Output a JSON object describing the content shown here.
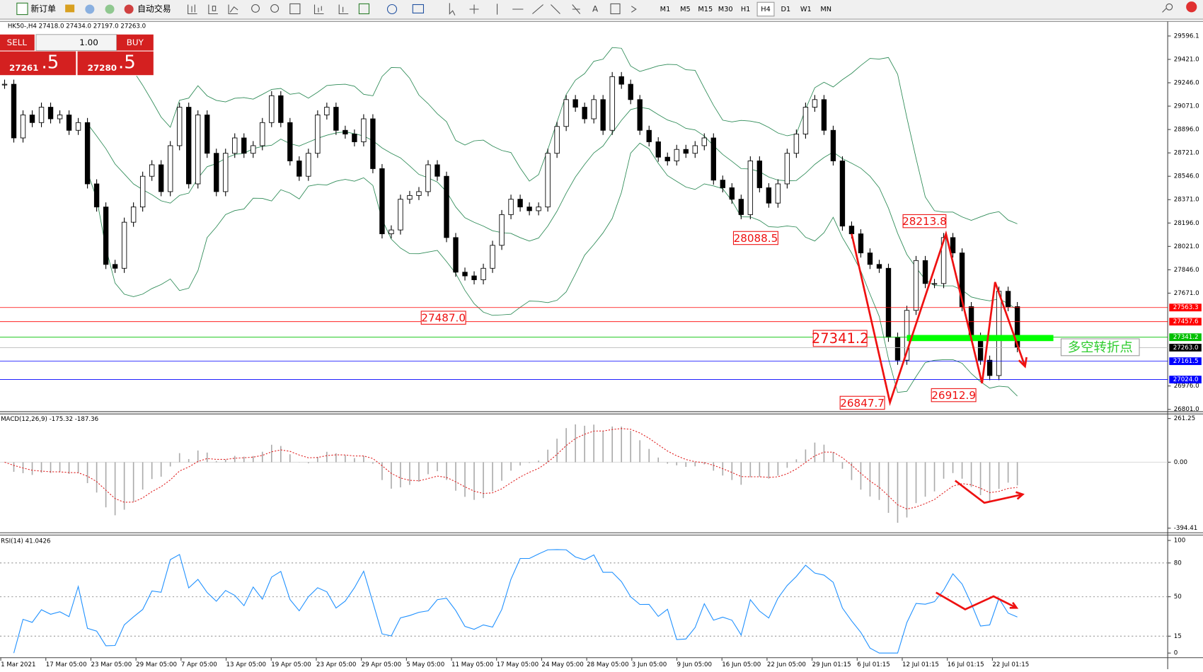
{
  "toolbar": {
    "new_order": "新订单",
    "auto_trade": "自动交易",
    "timeframes": [
      "M1",
      "M5",
      "M15",
      "M30",
      "H1",
      "H4",
      "D1",
      "W1",
      "MN"
    ],
    "active_timeframe": "H4"
  },
  "trade_panel": {
    "sell": "SELL",
    "buy": "BUY",
    "volume": "1.00",
    "sell_main": "27261",
    "sell_big": ".5",
    "buy_main": "27280",
    "buy_big": ".5"
  },
  "chart_data": [
    {
      "type": "candlestick",
      "title": "HK50-,H4 27418.0 27434.0 27197.0 27263.0",
      "closes": [
        29235,
        28833,
        29005,
        28948,
        29063,
        28976,
        29005,
        28890,
        28948,
        28489,
        28316,
        27886,
        27857,
        28202,
        28316,
        28546,
        28632,
        28431,
        28775,
        29063,
        28489,
        29005,
        28718,
        28431,
        28718,
        28833,
        28718,
        28775,
        28948,
        29149,
        28948,
        28661,
        28546,
        28718,
        29005,
        29063,
        28890,
        28862,
        28804,
        28976,
        28603,
        28115,
        28144,
        28374,
        28402,
        28431,
        28632,
        28546,
        28087,
        27828,
        27800,
        27771,
        27857,
        28029,
        28259,
        28374,
        28316,
        28288,
        28316,
        28718,
        28919,
        29120,
        29063,
        28976,
        29120,
        28890,
        29292,
        29235,
        29120,
        28890,
        28804,
        28689,
        28661,
        28747,
        28718,
        28775,
        28833,
        28517,
        28460,
        28374,
        28259,
        28661,
        28460,
        28345,
        28489,
        28718,
        28862,
        29063,
        29120,
        28890,
        28661,
        28173,
        28115,
        27972,
        27886,
        27857,
        27341,
        27169,
        27542,
        27915,
        27743,
        27743,
        28087,
        27972,
        27570,
        27341,
        27169,
        27054,
        27685,
        27570,
        27263
      ],
      "x_labels": [
        "1 Mar 2021",
        "17 Mar 05:00",
        "23 Mar 05:00",
        "29 Mar 05:00",
        "7 Apr 05:00",
        "13 Apr 05:00",
        "19 Apr 05:00",
        "23 Apr 05:00",
        "29 Apr 05:00",
        "5 May 05:00",
        "11 May 05:00",
        "17 May 05:00",
        "24 May 05:00",
        "28 May 05:00",
        "3 Jun 05:00",
        "9 Jun 05:00",
        "16 Jun 05:00",
        "22 Jun 05:00",
        "29 Jun 01:15",
        "6 Jul 01:15",
        "12 Jul 01:15",
        "16 Jul 01:15",
        "22 Jul 01:15"
      ],
      "ylim": [
        26784,
        29705
      ],
      "yticks": [
        29596.1,
        {
          "value": 29421.0,
          "label": "29421.0"
        },
        {
          "value": 29246.0,
          "label": "29246.0"
        },
        {
          "value": 29071.0,
          "label": "29071.0"
        },
        {
          "value": 28896.0,
          "label": "28896.0"
        },
        {
          "value": 28721.0,
          "label": "28721.0"
        },
        {
          "value": 28546.0,
          "label": "28546.0"
        },
        {
          "value": 28371.0,
          "label": "28371.0"
        },
        {
          "value": 28196.0,
          "label": "28196.0"
        },
        {
          "value": 28021.0,
          "label": "28021.0"
        },
        {
          "value": 27846.0,
          "label": "27846.0"
        },
        {
          "value": 27671.0,
          "label": "27671.0"
        },
        {
          "value": 26976.0,
          "label": "26976.0"
        },
        {
          "value": 26801.0,
          "label": "26801.0"
        }
      ],
      "levels": [
        {
          "value": 27563.3,
          "color": "#ff0000"
        },
        {
          "value": 27457.6,
          "color": "#ff0000"
        },
        {
          "value": 27341.2,
          "color": "#00c000"
        },
        {
          "value": 27263.0,
          "label": "27263.0",
          "color": "#000000"
        },
        {
          "value": 27161.5,
          "color": "#0000ff"
        },
        {
          "value": 27024.0,
          "label": "27024.0",
          "color": "#0000ff"
        }
      ],
      "annotations": [
        "28213.8",
        "28088.5",
        "27487.0",
        "27341.2",
        "26847.7",
        "26912.9",
        "多空转折点"
      ]
    },
    {
      "type": "macd",
      "title": "MACD(12,26,9) -175.32 -187.36",
      "ylim": [
        -421.9,
        288.8
      ],
      "yticks": [
        261.25,
        {
          "value": 0,
          "label": "0.00"
        },
        -394.41
      ]
    },
    {
      "type": "rsi",
      "title": "RSI(14) 41.0426",
      "ylim": [
        -4.1,
        104.8
      ],
      "yticks": [
        100,
        80,
        50,
        15,
        0
      ]
    }
  ]
}
